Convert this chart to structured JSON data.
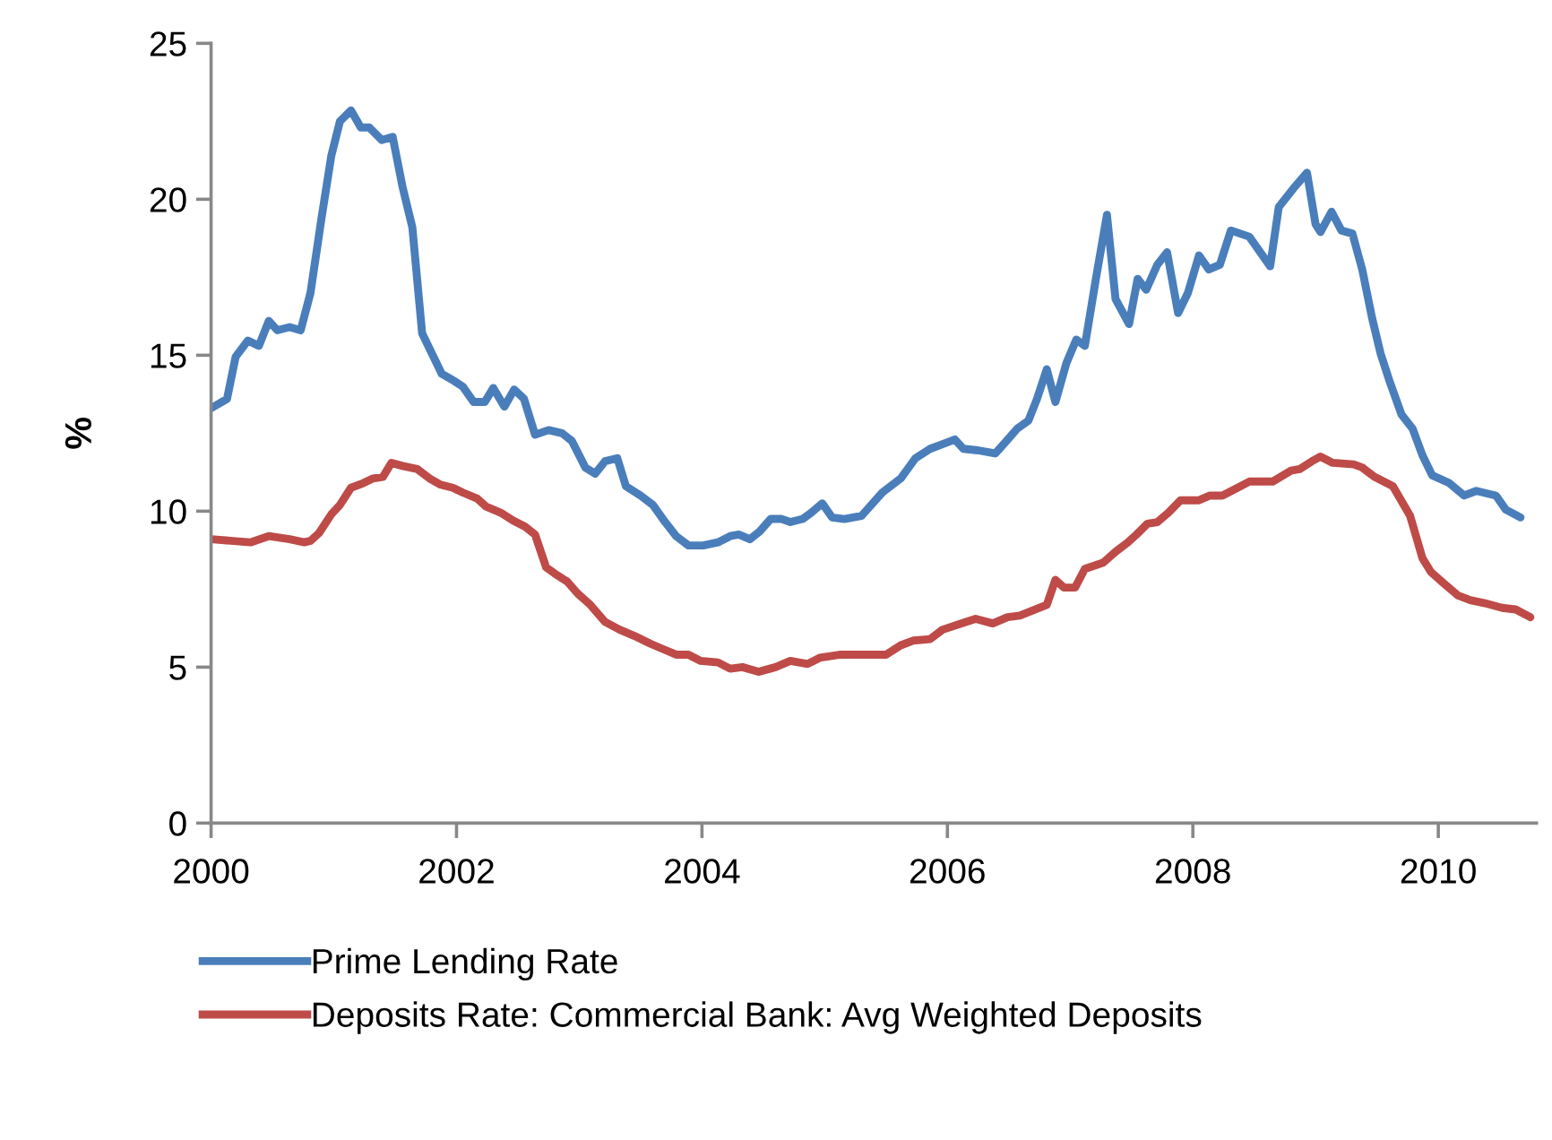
{
  "chart_data": {
    "type": "line",
    "ylabel": "%",
    "xlim": [
      2000,
      2010.8
    ],
    "xticks": [
      2000,
      2002,
      2004,
      2006,
      2008,
      2010
    ],
    "ylim": [
      0,
      25
    ],
    "yticks": [
      0,
      5,
      10,
      15,
      20,
      25
    ],
    "grid": false,
    "legend": "bottom",
    "marker": "none",
    "line_style": "solid",
    "series": [
      {
        "name": "Prime Lending Rate",
        "color": "#4a7ebb",
        "x": [
          2000.0,
          2000.13,
          2000.2,
          2000.3,
          2000.39,
          2000.47,
          2000.54,
          2000.64,
          2000.73,
          2000.81,
          2000.9,
          2000.98,
          2001.05,
          2001.14,
          2001.22,
          2001.29,
          2001.39,
          2001.48,
          2001.56,
          2001.64,
          2001.72,
          2001.88,
          2001.97,
          2002.05,
          2002.14,
          2002.23,
          2002.3,
          2002.39,
          2002.47,
          2002.55,
          2002.64,
          2002.75,
          2002.86,
          2002.94,
          2003.05,
          2003.13,
          2003.21,
          2003.31,
          2003.38,
          2003.5,
          2003.6,
          2003.7,
          2003.79,
          2003.89,
          2004.01,
          2004.13,
          2004.23,
          2004.3,
          2004.39,
          2004.47,
          2004.56,
          2004.65,
          2004.72,
          2004.82,
          2004.89,
          2004.98,
          2005.06,
          2005.16,
          2005.3,
          2005.47,
          2005.62,
          2005.74,
          2005.86,
          2005.96,
          2006.06,
          2006.13,
          2006.25,
          2006.39,
          2006.47,
          2006.57,
          2006.66,
          2006.73,
          2006.81,
          2006.88,
          2006.97,
          2007.05,
          2007.12,
          2007.21,
          2007.3,
          2007.37,
          2007.48,
          2007.55,
          2007.62,
          2007.71,
          2007.79,
          2007.88,
          2007.96,
          2008.05,
          2008.13,
          2008.22,
          2008.31,
          2008.46,
          2008.63,
          2008.7,
          2008.82,
          2008.93,
          2009.0,
          2009.04,
          2009.13,
          2009.21,
          2009.3,
          2009.38,
          2009.46,
          2009.53,
          2009.6,
          2009.7,
          2009.79,
          2009.87,
          2009.95,
          2010.09,
          2010.21,
          2010.31,
          2010.47,
          2010.55,
          2010.67
        ],
        "values": [
          13.3,
          13.6,
          14.95,
          15.47,
          15.3,
          16.1,
          15.8,
          15.9,
          15.8,
          17.0,
          19.4,
          21.4,
          22.5,
          22.85,
          22.3,
          22.3,
          21.9,
          22.0,
          20.4,
          19.1,
          15.7,
          14.4,
          14.2,
          14.0,
          13.5,
          13.5,
          13.95,
          13.35,
          13.9,
          13.6,
          12.45,
          12.6,
          12.5,
          12.25,
          11.4,
          11.2,
          11.6,
          11.7,
          10.8,
          10.5,
          10.2,
          9.65,
          9.2,
          8.9,
          8.9,
          9.0,
          9.2,
          9.25,
          9.1,
          9.35,
          9.75,
          9.75,
          9.65,
          9.75,
          9.95,
          10.25,
          9.8,
          9.75,
          9.85,
          10.6,
          11.05,
          11.7,
          12.0,
          12.15,
          12.3,
          12.0,
          11.95,
          11.85,
          12.2,
          12.65,
          12.9,
          13.6,
          14.55,
          13.5,
          14.75,
          15.5,
          15.3,
          17.45,
          19.5,
          16.8,
          16.0,
          17.45,
          17.1,
          17.9,
          18.3,
          16.35,
          17.0,
          18.2,
          17.75,
          17.9,
          19.0,
          18.8,
          17.85,
          19.75,
          20.35,
          20.85,
          19.2,
          18.95,
          19.6,
          19.0,
          18.9,
          17.75,
          16.2,
          15.05,
          14.2,
          13.1,
          12.65,
          11.8,
          11.15,
          10.9,
          10.5,
          10.65,
          10.5,
          10.05,
          9.8
        ]
      },
      {
        "name": "Deposits Rate: Commercial Bank: Avg Weighted Deposits",
        "color": "#be4b48",
        "x": [
          2000.0,
          2000.32,
          2000.47,
          2000.64,
          2000.76,
          2000.81,
          2000.88,
          2000.98,
          2001.05,
          2001.14,
          2001.24,
          2001.32,
          2001.4,
          2001.47,
          2001.56,
          2001.68,
          2001.78,
          2001.87,
          2001.97,
          2002.05,
          2002.17,
          2002.24,
          2002.36,
          2002.46,
          2002.56,
          2002.64,
          2002.73,
          2002.8,
          2002.9,
          2002.99,
          2003.09,
          2003.21,
          2003.33,
          2003.45,
          2003.58,
          2003.7,
          2003.79,
          2003.89,
          2003.99,
          2004.13,
          2004.23,
          2004.33,
          2004.46,
          2004.6,
          2004.72,
          2004.86,
          2004.96,
          2005.13,
          2005.5,
          2005.62,
          2005.72,
          2005.86,
          2005.96,
          2006.15,
          2006.23,
          2006.37,
          2006.49,
          2006.59,
          2006.81,
          2006.88,
          2006.95,
          2007.04,
          2007.12,
          2007.27,
          2007.37,
          2007.47,
          2007.54,
          2007.63,
          2007.71,
          2007.8,
          2007.9,
          2008.05,
          2008.14,
          2008.24,
          2008.34,
          2008.46,
          2008.65,
          2008.8,
          2008.87,
          2008.97,
          2009.04,
          2009.14,
          2009.31,
          2009.38,
          2009.48,
          2009.63,
          2009.77,
          2009.87,
          2009.94,
          2010.04,
          2010.16,
          2010.26,
          2010.38,
          2010.52,
          2010.63,
          2010.75
        ],
        "values": [
          9.1,
          9.0,
          9.2,
          9.1,
          9.0,
          9.05,
          9.3,
          9.9,
          10.2,
          10.75,
          10.9,
          11.05,
          11.1,
          11.55,
          11.45,
          11.35,
          11.05,
          10.85,
          10.75,
          10.6,
          10.4,
          10.15,
          9.95,
          9.7,
          9.5,
          9.25,
          8.2,
          8.0,
          7.75,
          7.35,
          7.0,
          6.45,
          6.2,
          6.0,
          5.75,
          5.55,
          5.4,
          5.4,
          5.2,
          5.15,
          4.95,
          5.0,
          4.85,
          5.0,
          5.2,
          5.1,
          5.3,
          5.4,
          5.4,
          5.7,
          5.85,
          5.9,
          6.2,
          6.45,
          6.55,
          6.4,
          6.6,
          6.65,
          7.0,
          7.8,
          7.55,
          7.55,
          8.15,
          8.35,
          8.7,
          9.0,
          9.25,
          9.6,
          9.65,
          9.95,
          10.35,
          10.35,
          10.5,
          10.5,
          10.7,
          10.95,
          10.95,
          11.3,
          11.35,
          11.6,
          11.75,
          11.55,
          11.5,
          11.4,
          11.1,
          10.8,
          9.85,
          8.5,
          8.05,
          7.7,
          7.3,
          7.15,
          7.05,
          6.9,
          6.85,
          6.6
        ]
      }
    ]
  }
}
